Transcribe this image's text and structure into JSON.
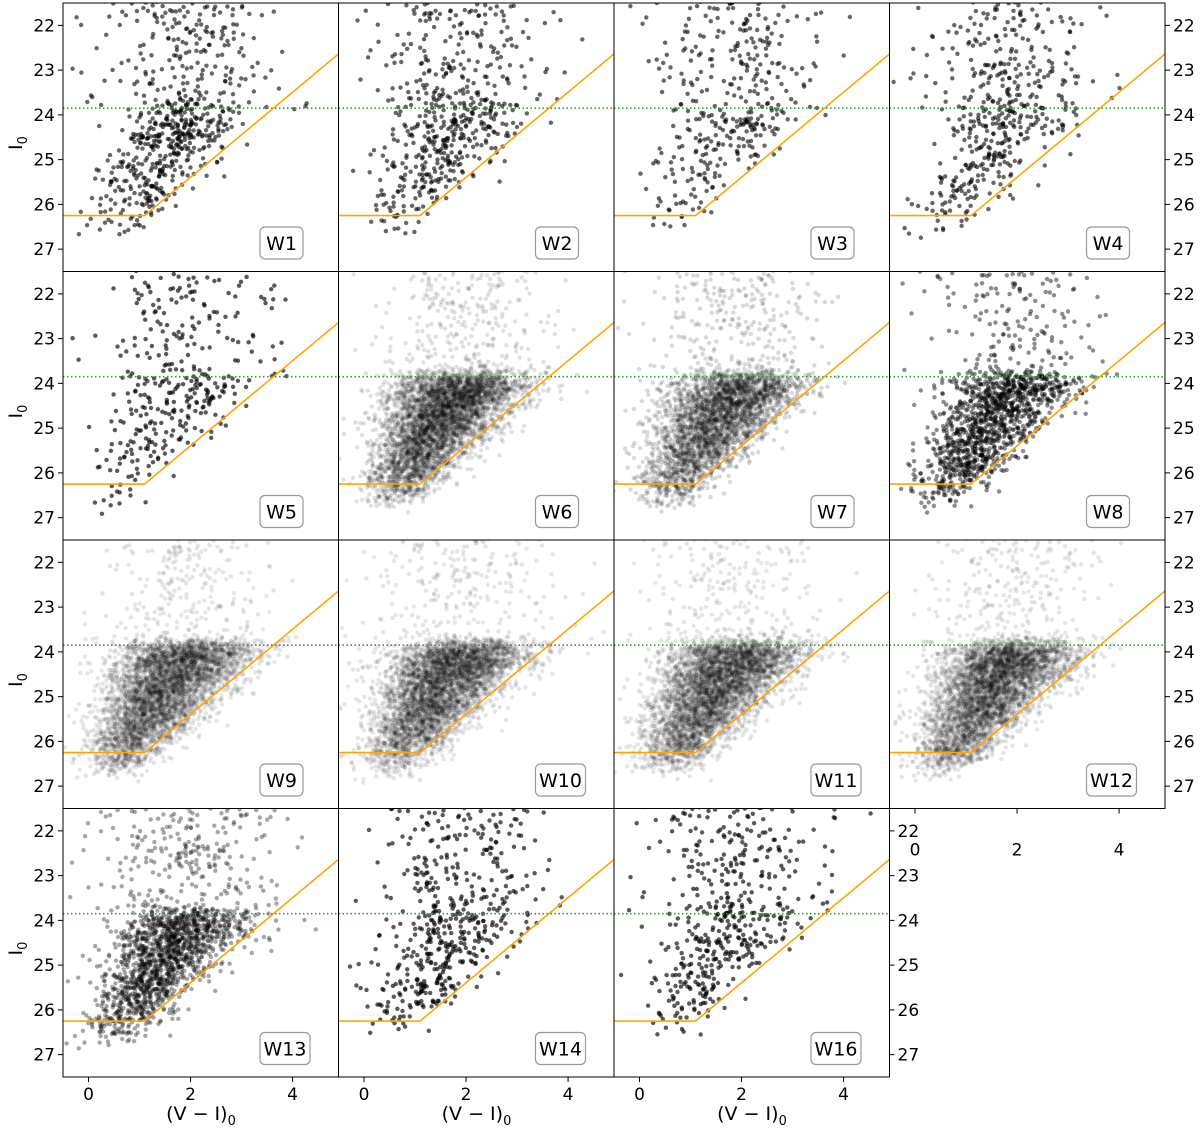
{
  "chart_data": {
    "type": "scatter",
    "title": "",
    "xlabel": "(V − I)",
    "xlabel_sub": "0",
    "ylabel": "I",
    "ylabel_sub": "0",
    "xlim": [
      -0.5,
      4.9
    ],
    "ylim": [
      27.5,
      21.5
    ],
    "y_inverted": true,
    "xticks": [
      0,
      2,
      4
    ],
    "yticks": [
      22,
      23,
      24,
      25,
      26,
      27
    ],
    "grid": false,
    "reference_lines": {
      "tip_level": {
        "I0": 23.85,
        "color": "#2ca02c",
        "style": "dotted"
      },
      "selection_cut": {
        "points": [
          [
            -0.5,
            26.25
          ],
          [
            1.1,
            26.25
          ],
          [
            4.9,
            22.64
          ]
        ],
        "color": "#ffa500"
      }
    },
    "point_color": "#000000",
    "panels": [
      {
        "label": "W1",
        "approx_points": 650,
        "alpha": 0.6,
        "upper_fraction": 0.35
      },
      {
        "label": "W2",
        "approx_points": 550,
        "alpha": 0.6,
        "upper_fraction": 0.4
      },
      {
        "label": "W3",
        "approx_points": 380,
        "alpha": 0.6,
        "upper_fraction": 0.5
      },
      {
        "label": "W4",
        "approx_points": 480,
        "alpha": 0.6,
        "upper_fraction": 0.45
      },
      {
        "label": "W5",
        "approx_points": 360,
        "alpha": 0.65,
        "upper_fraction": 0.4
      },
      {
        "label": "W6",
        "approx_points": 5000,
        "alpha": 0.12,
        "upper_fraction": 0.06
      },
      {
        "label": "W7",
        "approx_points": 3500,
        "alpha": 0.15,
        "upper_fraction": 0.08
      },
      {
        "label": "W8",
        "approx_points": 1400,
        "alpha": 0.45,
        "upper_fraction": 0.12
      },
      {
        "label": "W9",
        "approx_points": 5000,
        "alpha": 0.1,
        "upper_fraction": 0.05
      },
      {
        "label": "W10",
        "approx_points": 5000,
        "alpha": 0.1,
        "upper_fraction": 0.05
      },
      {
        "label": "W11",
        "approx_points": 5000,
        "alpha": 0.1,
        "upper_fraction": 0.05
      },
      {
        "label": "W12",
        "approx_points": 5000,
        "alpha": 0.1,
        "upper_fraction": 0.05
      },
      {
        "label": "W13",
        "approx_points": 1800,
        "alpha": 0.35,
        "upper_fraction": 0.15
      },
      {
        "label": "W14",
        "approx_points": 520,
        "alpha": 0.65,
        "upper_fraction": 0.4
      },
      {
        "label": "W16",
        "approx_points": 480,
        "alpha": 0.65,
        "upper_fraction": 0.45
      }
    ]
  }
}
